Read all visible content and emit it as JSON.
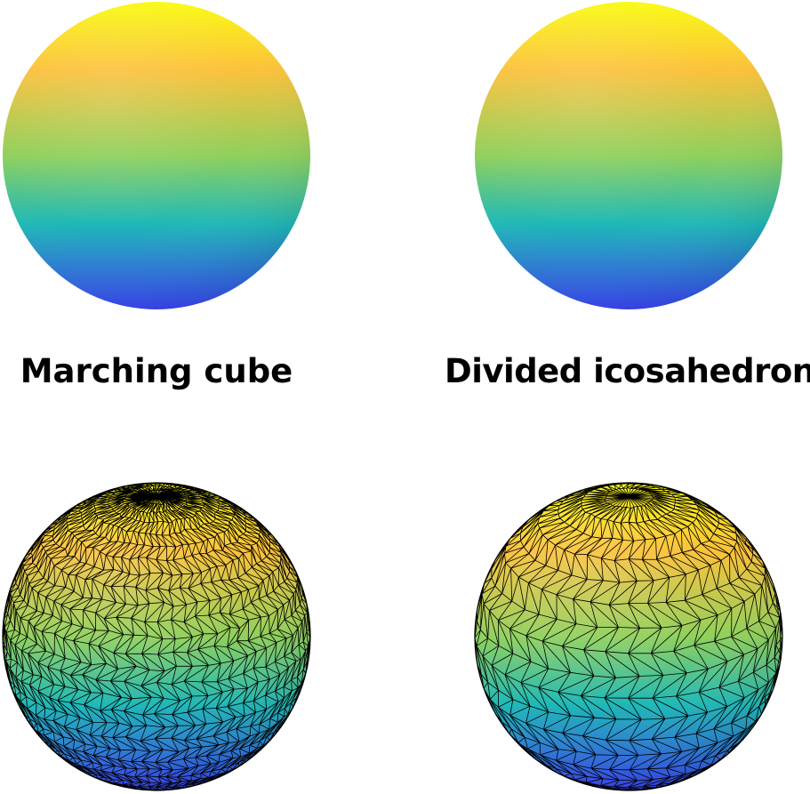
{
  "panels": [
    {
      "caption": "Marching cube",
      "style": "smooth",
      "mesh": "marching-cube"
    },
    {
      "caption": "Divided icosahedron",
      "style": "smooth",
      "mesh": "icosahedron"
    }
  ],
  "colors": {
    "background": "#ffffff",
    "top": "#f9fb14",
    "upper": "#fcc13a",
    "middle": "#8fd05c",
    "lower": "#1fb9b7",
    "bottom": "#3843f0",
    "edge": "#000000"
  }
}
